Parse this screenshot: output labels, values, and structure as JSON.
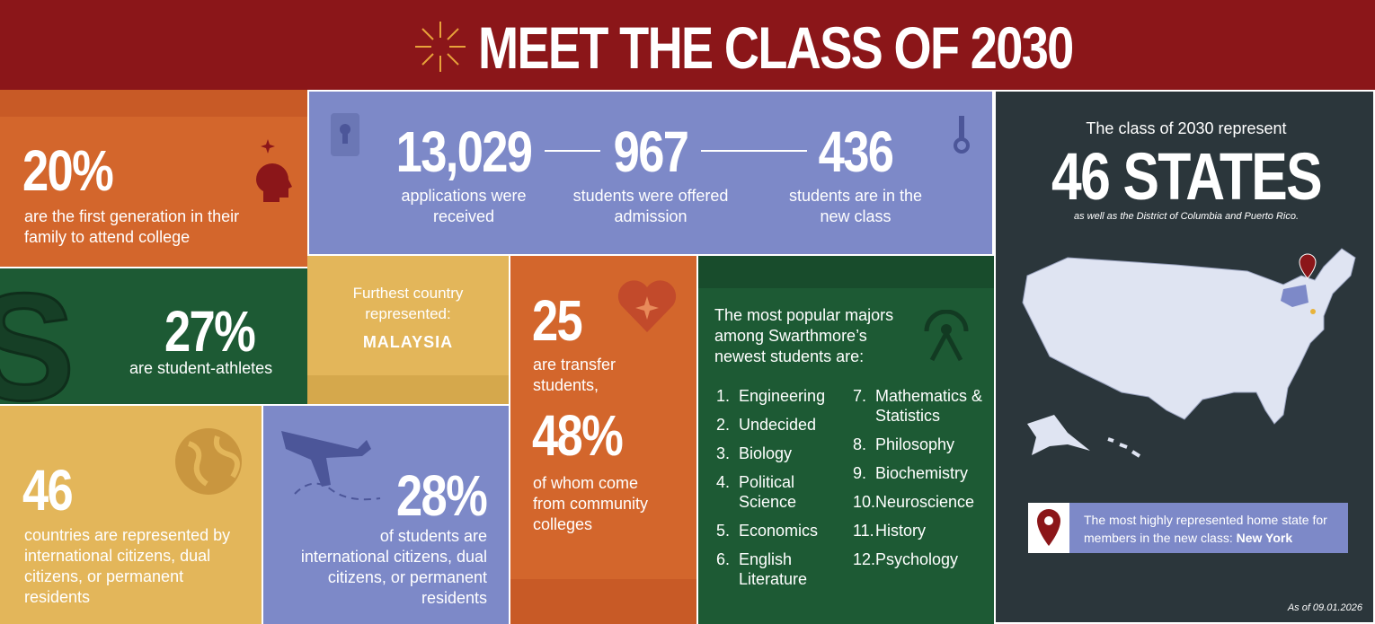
{
  "header": {
    "title": "MEET THE CLASS OF 2030"
  },
  "first_generation": {
    "value": "20%",
    "text": "are the first generation in their family to attend college"
  },
  "admissions": [
    {
      "value": "13,029",
      "text": "applications were received"
    },
    {
      "value": "967",
      "text": "students were offered admission"
    },
    {
      "value": "436",
      "text": "students are in the new class"
    }
  ],
  "athletes": {
    "value": "27%",
    "text": "are student-athletes"
  },
  "furthest_country": {
    "label": "Furthest country represented:",
    "value": "MALAYSIA"
  },
  "transfer": {
    "value": "25",
    "text": "are transfer students,",
    "community_value": "48%",
    "community_text": "of whom come from community colleges"
  },
  "majors": {
    "heading": "The most popular majors among Swarthmore’s newest students are:",
    "items": [
      {
        "number": "1.",
        "name": "Engineering"
      },
      {
        "number": "2.",
        "name": "Undecided"
      },
      {
        "number": "3.",
        "name": "Biology"
      },
      {
        "number": "4.",
        "name": "Political Science"
      },
      {
        "number": "5.",
        "name": "Economics"
      },
      {
        "number": "6.",
        "name": "English Literature"
      },
      {
        "number": "7.",
        "name": "Mathematics & Statistics"
      },
      {
        "number": "8.",
        "name": "Philosophy"
      },
      {
        "number": "9.",
        "name": "Biochemistry"
      },
      {
        "number": "10.",
        "name": "Neuroscience"
      },
      {
        "number": "11.",
        "name": "History"
      },
      {
        "number": "12.",
        "name": "Psychology"
      }
    ]
  },
  "countries": {
    "value": "46",
    "text": "countries are represented by international citizens, dual citizens, or permanent residents"
  },
  "international": {
    "value": "28%",
    "text": "of students are international citizens, dual citizens, or permanent residents"
  },
  "states": {
    "intro": "The class of 2030 represent",
    "value": "46 STATES",
    "note": "as well as the District of Columbia and Puerto Rico.",
    "callout": "The most highly represented home state for members in the new class:",
    "callout_state": "New York",
    "as_of": "As of 09.01.2026"
  }
}
